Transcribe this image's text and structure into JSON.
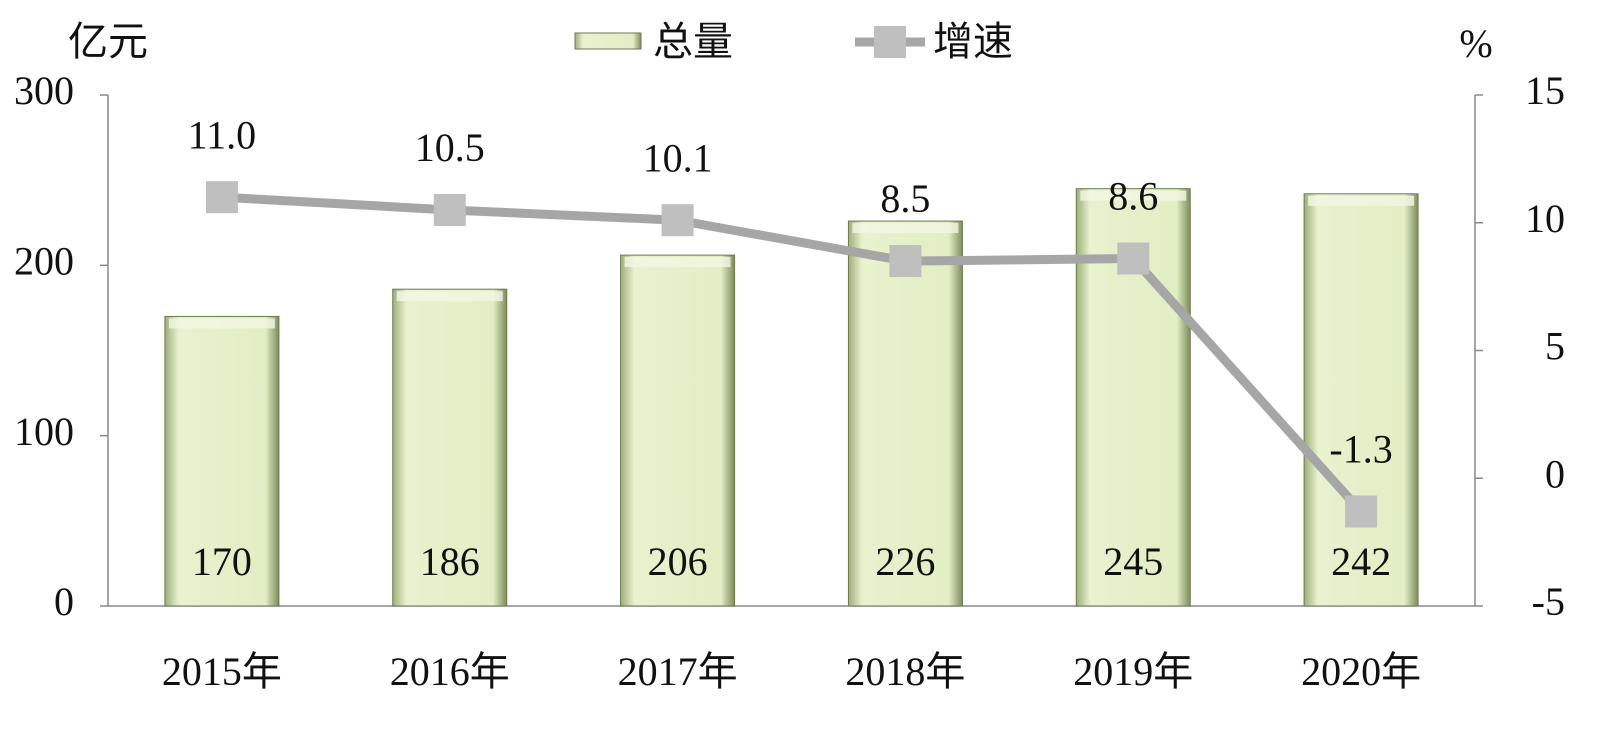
{
  "chart_data": {
    "type": "bar",
    "y_label": "亿元",
    "y2_label": "%",
    "categories": [
      "2015年",
      "2016年",
      "2017年",
      "2018年",
      "2019年",
      "2020年"
    ],
    "series": [
      {
        "name": "总量",
        "type": "bar",
        "color": "#e2eec4",
        "values": [
          170,
          186,
          206,
          226,
          245,
          242
        ]
      },
      {
        "name": "增速",
        "type": "line",
        "axis": "y2",
        "color": "#a6a6a6",
        "values": [
          11.0,
          10.5,
          10.1,
          8.5,
          8.6,
          -1.3
        ],
        "value_labels": [
          "11.0",
          "10.5",
          "10.1",
          "8.5",
          "8.6",
          "-1.3"
        ]
      }
    ],
    "ylim": [
      0,
      300
    ],
    "yticks": [
      0,
      100,
      200,
      300
    ],
    "y2lim": [
      -5,
      15
    ],
    "y2ticks": [
      -5,
      0,
      5,
      10,
      15
    ],
    "legend": "top",
    "grid": false
  }
}
